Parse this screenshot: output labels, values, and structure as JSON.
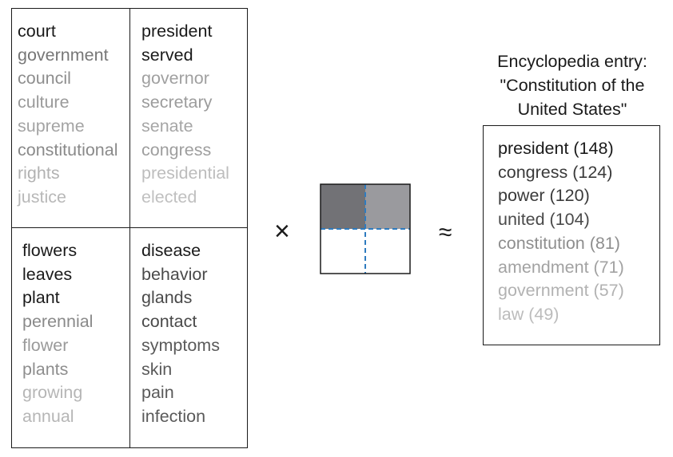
{
  "topics": [
    {
      "words": [
        "court",
        "government",
        "council",
        "culture",
        "supreme",
        "constitutional",
        "rights",
        "justice"
      ],
      "shades": [
        "#1a1a1a",
        "#777777",
        "#8e8e8e",
        "#9a9a9a",
        "#a4a4a4",
        "#8a8a8a",
        "#b2b2b2",
        "#b8b8b8"
      ]
    },
    {
      "words": [
        "president",
        "served",
        "governor",
        "secretary",
        "senate",
        "congress",
        "presidential",
        "elected"
      ],
      "shades": [
        "#1a1a1a",
        "#1a1a1a",
        "#a0a0a0",
        "#9c9c9c",
        "#a6a6a6",
        "#9e9e9e",
        "#bdbdbd",
        "#c0c0c0"
      ]
    },
    {
      "words": [
        "flowers",
        "leaves",
        "plant",
        "perennial",
        "flower",
        "plants",
        "growing",
        "annual"
      ],
      "shades": [
        "#1a1a1a",
        "#1a1a1a",
        "#1a1a1a",
        "#8a8a8a",
        "#9a9a9a",
        "#8e8e8e",
        "#b6b6b6",
        "#b6b6b6"
      ]
    },
    {
      "words": [
        "disease",
        "behavior",
        "glands",
        "contact",
        "symptoms",
        "skin",
        "pain",
        "infection"
      ],
      "shades": [
        "#1a1a1a",
        "#4a4a4a",
        "#4a4a4a",
        "#4a4a4a",
        "#5a5a5a",
        "#5a5a5a",
        "#5a5a5a",
        "#5a5a5a"
      ]
    }
  ],
  "operators": {
    "times": "×",
    "approx": "≈"
  },
  "matrix": {
    "cells": [
      {
        "fill": "#727276"
      },
      {
        "fill": "#9a9a9e"
      },
      {
        "fill": "#ffffff"
      },
      {
        "fill": "#ffffff"
      }
    ],
    "dash_color": "#2e7bbf"
  },
  "entry": {
    "title_lines": [
      "Encyclopedia entry:",
      "\"Constitution of the",
      "United States\""
    ],
    "items": [
      {
        "text": "president (148)",
        "color": "#1a1a1a"
      },
      {
        "text": "congress (124)",
        "color": "#3a3a3a"
      },
      {
        "text": "power (120)",
        "color": "#3a3a3a"
      },
      {
        "text": "united (104)",
        "color": "#4a4a4a"
      },
      {
        "text": "constitution (81)",
        "color": "#8e8e8e"
      },
      {
        "text": "amendment (71)",
        "color": "#a2a2a2"
      },
      {
        "text": "government (57)",
        "color": "#b2b2b2"
      },
      {
        "text": "law (49)",
        "color": "#bcbcbc"
      }
    ]
  }
}
